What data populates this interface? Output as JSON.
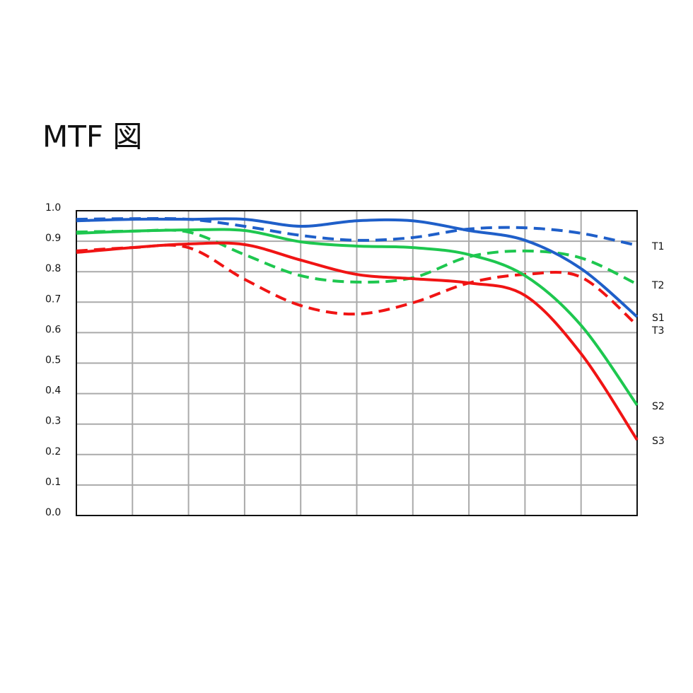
{
  "chart_data": {
    "type": "line",
    "title": "MTF 図",
    "x": [
      0,
      1,
      2,
      3,
      4,
      5,
      6,
      7,
      8,
      9,
      10
    ],
    "xlim": [
      0,
      10
    ],
    "xticks": [
      0,
      1,
      2,
      3,
      4,
      5,
      6,
      7,
      8,
      9,
      10
    ],
    "ylim": [
      0,
      1
    ],
    "yticks": [
      {
        "value": 0,
        "label": "0.0"
      },
      0.1,
      0.2,
      0.3,
      0.4,
      0.5,
      0.6,
      0.7,
      0.8,
      0.9,
      {
        "value": 1,
        "label": "1.0"
      }
    ],
    "grid": true,
    "series": [
      {
        "name": "T1",
        "color": "#1f5fc9",
        "dashed": true,
        "values": [
          0.972,
          0.974,
          0.972,
          0.949,
          0.919,
          0.903,
          0.912,
          0.94,
          0.944,
          0.926,
          0.886
        ]
      },
      {
        "name": "T2",
        "color": "#1ec74f",
        "dashed": true,
        "values": [
          0.93,
          0.933,
          0.93,
          0.856,
          0.787,
          0.766,
          0.78,
          0.849,
          0.868,
          0.845,
          0.759
        ]
      },
      {
        "name": "S1",
        "color": "#1f5fc9",
        "dashed": false,
        "values": [
          0.967,
          0.972,
          0.972,
          0.972,
          0.949,
          0.967,
          0.967,
          0.935,
          0.903,
          0.81,
          0.652
        ]
      },
      {
        "name": "T3",
        "color": "#f01414",
        "dashed": true,
        "values": [
          0.868,
          0.879,
          0.879,
          0.775,
          0.689,
          0.661,
          0.698,
          0.763,
          0.791,
          0.782,
          0.624
        ]
      },
      {
        "name": "S2",
        "color": "#1ec74f",
        "dashed": false,
        "values": [
          0.926,
          0.933,
          0.937,
          0.935,
          0.898,
          0.884,
          0.879,
          0.856,
          0.787,
          0.624,
          0.362
        ]
      },
      {
        "name": "S3",
        "color": "#f01414",
        "dashed": false,
        "values": [
          0.863,
          0.879,
          0.891,
          0.889,
          0.838,
          0.791,
          0.777,
          0.763,
          0.722,
          0.531,
          0.248
        ]
      }
    ]
  }
}
